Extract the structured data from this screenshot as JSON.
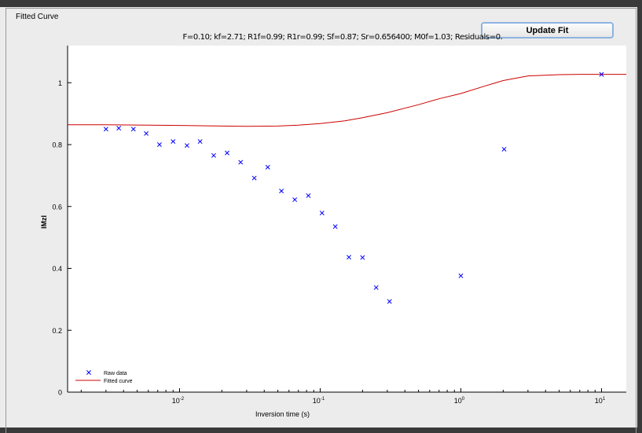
{
  "panel": {
    "title": "Fitted Curve"
  },
  "toolbar": {
    "update_label": "Update Fit"
  },
  "fit_summary": "F=0.10; kf=2.71; R1f=0.99; R1r=0.99; Sf=0.87; Sr=0.656400; M0f=1.03; Residuals=0.",
  "chart_data": {
    "type": "scatter",
    "title": "",
    "xlabel": "Inversion time (s)",
    "ylabel": "IMzI",
    "xscale": "log",
    "xlim": [
      0.0016,
      15
    ],
    "ylim": [
      0,
      1.12
    ],
    "yticks": [
      0,
      0.2,
      0.4,
      0.6,
      0.8,
      1
    ],
    "ytick_labels": [
      "0",
      "0.2",
      "0.4",
      "0.6",
      "0.8",
      "1"
    ],
    "xticks": [
      0.01,
      0.1,
      1,
      10
    ],
    "xtick_labels": [
      "10-2",
      "10-1",
      "100",
      "101"
    ],
    "legend_position": "bottom-left",
    "series": [
      {
        "name": "Raw data",
        "marker": "x",
        "color": "#0000ff",
        "x": [
          0.003,
          0.0037,
          0.0047,
          0.0058,
          0.0072,
          0.009,
          0.0113,
          0.014,
          0.0175,
          0.0218,
          0.0272,
          0.034,
          0.0424,
          0.053,
          0.066,
          0.0824,
          0.103,
          0.128,
          0.16,
          0.2,
          0.25,
          0.311,
          1.0,
          2.03,
          10.0
        ],
        "y": [
          0.85,
          0.853,
          0.85,
          0.836,
          0.8,
          0.81,
          0.797,
          0.81,
          0.765,
          0.773,
          0.743,
          0.692,
          0.727,
          0.65,
          0.622,
          0.635,
          0.579,
          0.535,
          0.436,
          0.435,
          0.338,
          0.293,
          0.376,
          0.785,
          1.027
        ]
      },
      {
        "name": "Fitted curve",
        "line": true,
        "color": "#cc0000",
        "x": [
          0.0016,
          0.003,
          0.006,
          0.01,
          0.02,
          0.03,
          0.05,
          0.07,
          0.1,
          0.15,
          0.2,
          0.3,
          0.5,
          0.7,
          1.0,
          1.5,
          2.0,
          3.0,
          5.0,
          7.0,
          10.0,
          15.0
        ],
        "y": [
          0.864,
          0.864,
          0.863,
          0.862,
          0.86,
          0.859,
          0.86,
          0.863,
          0.868,
          0.877,
          0.887,
          0.903,
          0.929,
          0.948,
          0.965,
          0.99,
          1.007,
          1.022,
          1.026,
          1.027,
          1.027,
          1.027
        ]
      }
    ]
  }
}
